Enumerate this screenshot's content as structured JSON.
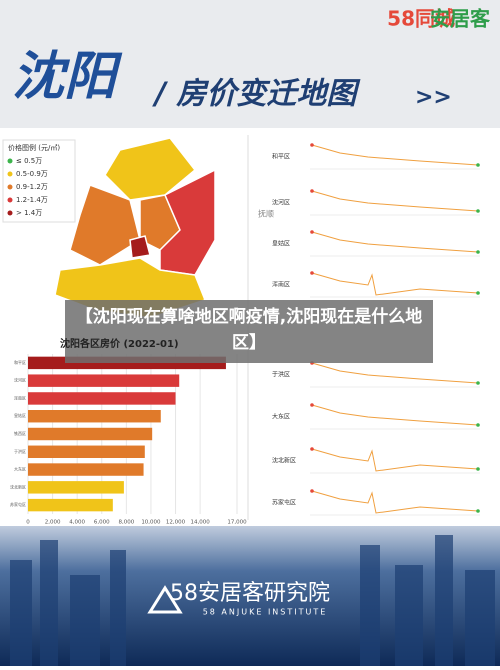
{
  "header": {
    "title": "沈阳",
    "subtitle": "/ 房价变迁地图",
    "arrow": ">>",
    "logo_left": "58同城",
    "logo_right": "安居客"
  },
  "legend": {
    "title": "价格图例 (元/㎡)",
    "items": [
      {
        "label": "≤ 0.5万",
        "color": "#3cb44b"
      },
      {
        "label": "0.5-0.9万",
        "color": "#f0c419"
      },
      {
        "label": "0.9-1.2万",
        "color": "#e07a2a"
      },
      {
        "label": "1.2-1.4万",
        "color": "#d93a3a"
      },
      {
        "label": "> 1.4万",
        "color": "#a51c1c"
      }
    ]
  },
  "map_label": "抚顺",
  "banner": "【沈阳现在算啥地区啊疫情,沈阳现在是什么地区】",
  "chart_data": {
    "type": "hbar",
    "title": "沈阳各区房价 (2022-01)",
    "categories": [
      "和平区",
      "沈河区",
      "浑南区",
      "皇姑区",
      "铁西区",
      "于洪区",
      "大东区",
      "沈北新区",
      "苏家屯区"
    ],
    "values": [
      16100,
      12300,
      12000,
      10800,
      10100,
      9500,
      9400,
      7800,
      6900
    ],
    "colors": [
      "#a51c1c",
      "#d93a3a",
      "#d93a3a",
      "#e07a2a",
      "#e07a2a",
      "#e07a2a",
      "#e07a2a",
      "#f0c419",
      "#f0c419"
    ],
    "xlim": [
      0,
      17000
    ],
    "xticks": [
      0,
      {
        "value": 2000,
        "label": "2,000"
      },
      {
        "value": 4000,
        "label": "4,000"
      },
      {
        "value": 6000,
        "label": "6,000"
      },
      {
        "value": 8000,
        "label": "8,000"
      },
      {
        "value": 10000,
        "label": "10,000"
      },
      {
        "value": 12000,
        "label": "12,000"
      },
      {
        "value": 14000,
        "label": "14,000"
      },
      {
        "value": 17000,
        "label": "17,000"
      }
    ],
    "grid": true
  },
  "trend_labels": [
    "和平区",
    "沈河区",
    "皇姑区",
    "浑南区",
    "于洪区",
    "大东区",
    "沈北新区",
    "苏家屯区"
  ],
  "footer": {
    "name": "58安居客研究院",
    "english": "58 ANJUKE INSTITUTE"
  }
}
